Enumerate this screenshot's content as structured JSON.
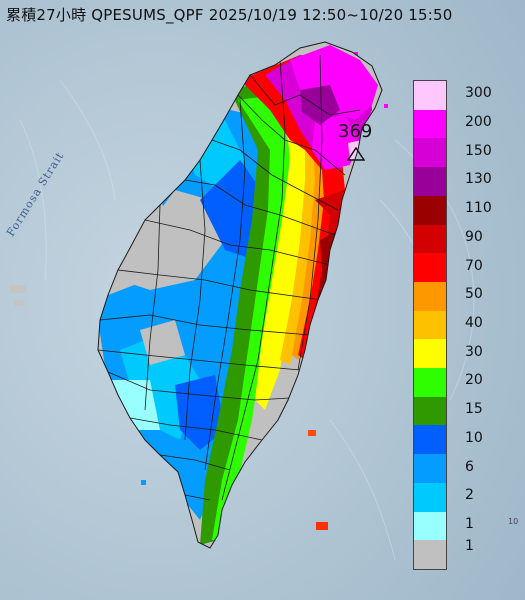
{
  "header": {
    "title": "累積27小時 QPESUMS_QPF 2025/10/19 12:50~10/20 15:50"
  },
  "map": {
    "sea_label": "Formosa Strait",
    "peak": {
      "value": "369",
      "marker": "triangle-marker"
    },
    "corner_text": "10"
  },
  "legend": {
    "title": "",
    "classes": [
      {
        "label": "300",
        "color": "#fec8fe"
      },
      {
        "label": "200",
        "color": "#fe00fe"
      },
      {
        "label": "150",
        "color": "#d600d6"
      },
      {
        "label": "130",
        "color": "#990099"
      },
      {
        "label": "110",
        "color": "#9b0000"
      },
      {
        "label": "90",
        "color": "#d20000"
      },
      {
        "label": "70",
        "color": "#fe0000"
      },
      {
        "label": "50",
        "color": "#fe9800"
      },
      {
        "label": "40",
        "color": "#fec100"
      },
      {
        "label": "30",
        "color": "#fefe00"
      },
      {
        "label": "20",
        "color": "#2ffe00"
      },
      {
        "label": "15",
        "color": "#2f9a00"
      },
      {
        "label": "10",
        "color": "#005ffe"
      },
      {
        "label": "6",
        "color": "#049cfe"
      },
      {
        "label": "2",
        "color": "#00c9fe"
      },
      {
        "label": "1",
        "color": "#98fefe"
      },
      {
        "label": "",
        "color": "#c0c0c0"
      }
    ],
    "bottom_label": "1"
  }
}
